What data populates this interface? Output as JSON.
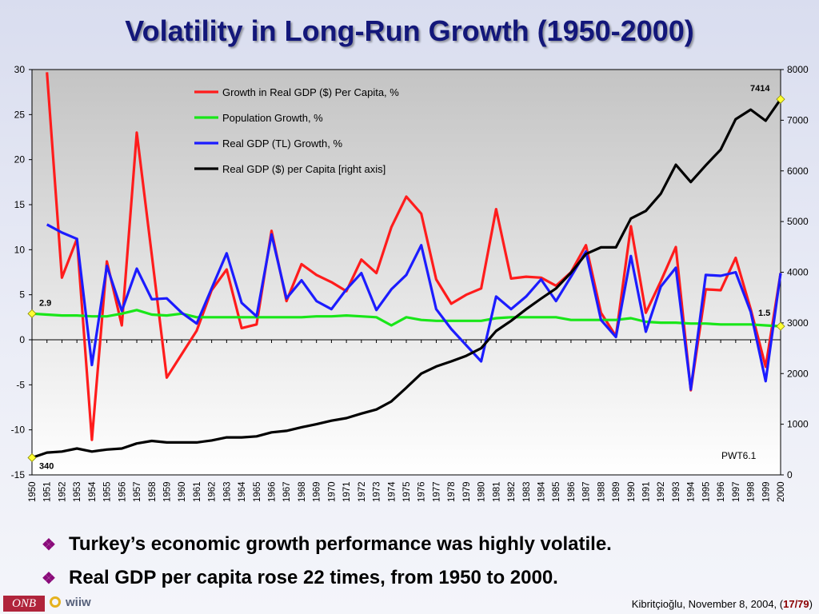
{
  "slide": {
    "title": "Volatility in Long-Run Growth (1950-2000)",
    "bullets": [
      "Turkey’s economic growth performance was highly volatile.",
      "Real GDP per capita rose 22 times, from 1950 to 2000."
    ],
    "bullet_glyph": "❖",
    "footer": {
      "logo_left": "ONB",
      "logo_right": "wiiw",
      "citation": "Kibritçioğlu, November 8, 2004, (",
      "page": "17/79",
      "citation_close": ")"
    }
  },
  "chart_data": {
    "type": "line",
    "x": [
      1950,
      1951,
      1952,
      1953,
      1954,
      1955,
      1956,
      1957,
      1958,
      1959,
      1960,
      1961,
      1962,
      1963,
      1964,
      1965,
      1966,
      1967,
      1968,
      1969,
      1970,
      1971,
      1972,
      1973,
      1974,
      1975,
      1976,
      1977,
      1978,
      1979,
      1980,
      1981,
      1982,
      1983,
      1984,
      1985,
      1986,
      1987,
      1988,
      1989,
      1990,
      1991,
      1992,
      1993,
      1994,
      1995,
      1996,
      1997,
      1998,
      1999,
      2000
    ],
    "y_left": {
      "min": -15,
      "max": 30,
      "ticks": [
        -15,
        -10,
        -5,
        0,
        5,
        10,
        15,
        20,
        25,
        30
      ]
    },
    "y_right": {
      "min": 0,
      "max": 8000,
      "ticks": [
        0,
        1000,
        2000,
        3000,
        4000,
        5000,
        6000,
        7000,
        8000
      ]
    },
    "series": [
      {
        "name": "Growth in Real GDP ($) Per Capita, %",
        "color": "#ff1c1c",
        "axis": "left",
        "values": [
          null,
          29.7,
          6.9,
          11.2,
          -11.1,
          8.7,
          1.6,
          23.0,
          9.4,
          -4.2,
          -1.6,
          1.0,
          5.5,
          7.8,
          1.3,
          1.7,
          12.1,
          4.3,
          8.4,
          7.2,
          6.4,
          5.4,
          8.9,
          7.4,
          12.5,
          15.9,
          14.0,
          6.7,
          4.0,
          5.0,
          5.7,
          14.5,
          6.8,
          7.0,
          6.9,
          6.0,
          7.5,
          10.5,
          3.0,
          0.4,
          12.6,
          3.0,
          6.5,
          10.3,
          -5.6,
          5.6,
          5.5,
          9.1,
          3.4,
          -3.0,
          7.4
        ]
      },
      {
        "name": "Population Growth, %",
        "color": "#19e619",
        "axis": "left",
        "values": [
          2.9,
          2.8,
          2.7,
          2.7,
          2.6,
          2.6,
          2.9,
          3.3,
          2.8,
          2.7,
          2.9,
          2.5,
          2.5,
          2.5,
          2.5,
          2.5,
          2.5,
          2.5,
          2.5,
          2.6,
          2.6,
          2.7,
          2.6,
          2.5,
          1.6,
          2.5,
          2.2,
          2.1,
          2.1,
          2.1,
          2.1,
          2.4,
          2.5,
          2.5,
          2.5,
          2.5,
          2.2,
          2.2,
          2.2,
          2.2,
          2.4,
          2.0,
          1.9,
          1.9,
          1.8,
          1.8,
          1.7,
          1.7,
          1.7,
          1.6,
          1.5
        ]
      },
      {
        "name": "Real GDP (TL) Growth, %",
        "color": "#1c1cff",
        "axis": "left",
        "values": [
          null,
          12.8,
          11.9,
          11.2,
          -2.8,
          8.2,
          3.2,
          7.9,
          4.5,
          4.6,
          3.0,
          1.8,
          5.7,
          9.6,
          4.1,
          2.6,
          11.7,
          4.6,
          6.6,
          4.3,
          3.4,
          5.6,
          7.4,
          3.3,
          5.6,
          7.2,
          10.5,
          3.4,
          1.2,
          -0.6,
          -2.4,
          4.8,
          3.4,
          4.8,
          6.7,
          4.3,
          7.0,
          9.8,
          2.2,
          0.3,
          9.3,
          0.9,
          5.9,
          8.0,
          -5.5,
          7.2,
          7.1,
          7.5,
          3.1,
          -4.6,
          7.4
        ]
      },
      {
        "name": "Real GDP ($) per Capita [right axis]",
        "color": "#000000",
        "axis": "right",
        "values": [
          340,
          440,
          460,
          520,
          460,
          500,
          520,
          620,
          670,
          640,
          640,
          640,
          680,
          740,
          740,
          760,
          840,
          870,
          940,
          1000,
          1070,
          1120,
          1210,
          1290,
          1450,
          1720,
          2000,
          2140,
          2240,
          2350,
          2500,
          2840,
          3040,
          3270,
          3480,
          3680,
          3990,
          4360,
          4490,
          4490,
          5060,
          5210,
          5550,
          6120,
          5780,
          6110,
          6420,
          7020,
          7210,
          6990,
          7414
        ]
      }
    ],
    "annotations": {
      "start_population": "2.9",
      "end_population": "1.5",
      "start_gdp": "340",
      "end_gdp": "7414",
      "source": "PWT6.1"
    },
    "legend_position": "top-center",
    "grid": "zero line only"
  }
}
